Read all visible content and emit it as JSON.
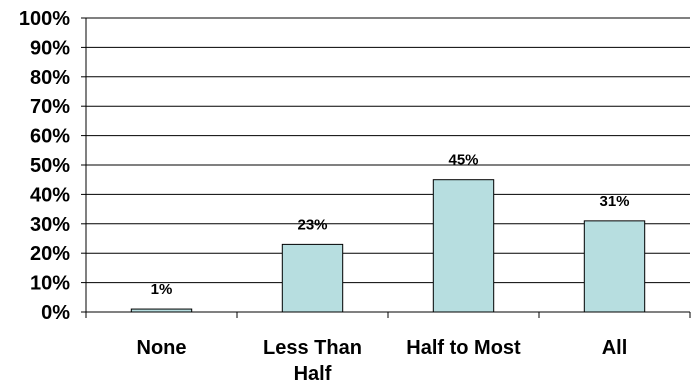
{
  "chart_data": {
    "type": "bar",
    "categories": [
      "None",
      "Less Than Half",
      "Half to Most",
      "All"
    ],
    "values": [
      1,
      23,
      45,
      31
    ],
    "data_labels": [
      "1%",
      "23%",
      "45%",
      "31%"
    ],
    "title": "",
    "xlabel": "",
    "ylabel": "",
    "ylim": [
      0,
      100
    ],
    "yticks": [
      0,
      10,
      20,
      30,
      40,
      50,
      60,
      70,
      80,
      90,
      100
    ],
    "ytick_labels": [
      "0%",
      "10%",
      "20%",
      "30%",
      "40%",
      "50%",
      "60%",
      "70%",
      "80%",
      "90%",
      "100%"
    ],
    "grid": true,
    "legend": "none",
    "colors": {
      "bar_fill": "#b7dee0",
      "bar_stroke": "#000000",
      "gridline": "#000000",
      "axis": "#000000"
    }
  }
}
